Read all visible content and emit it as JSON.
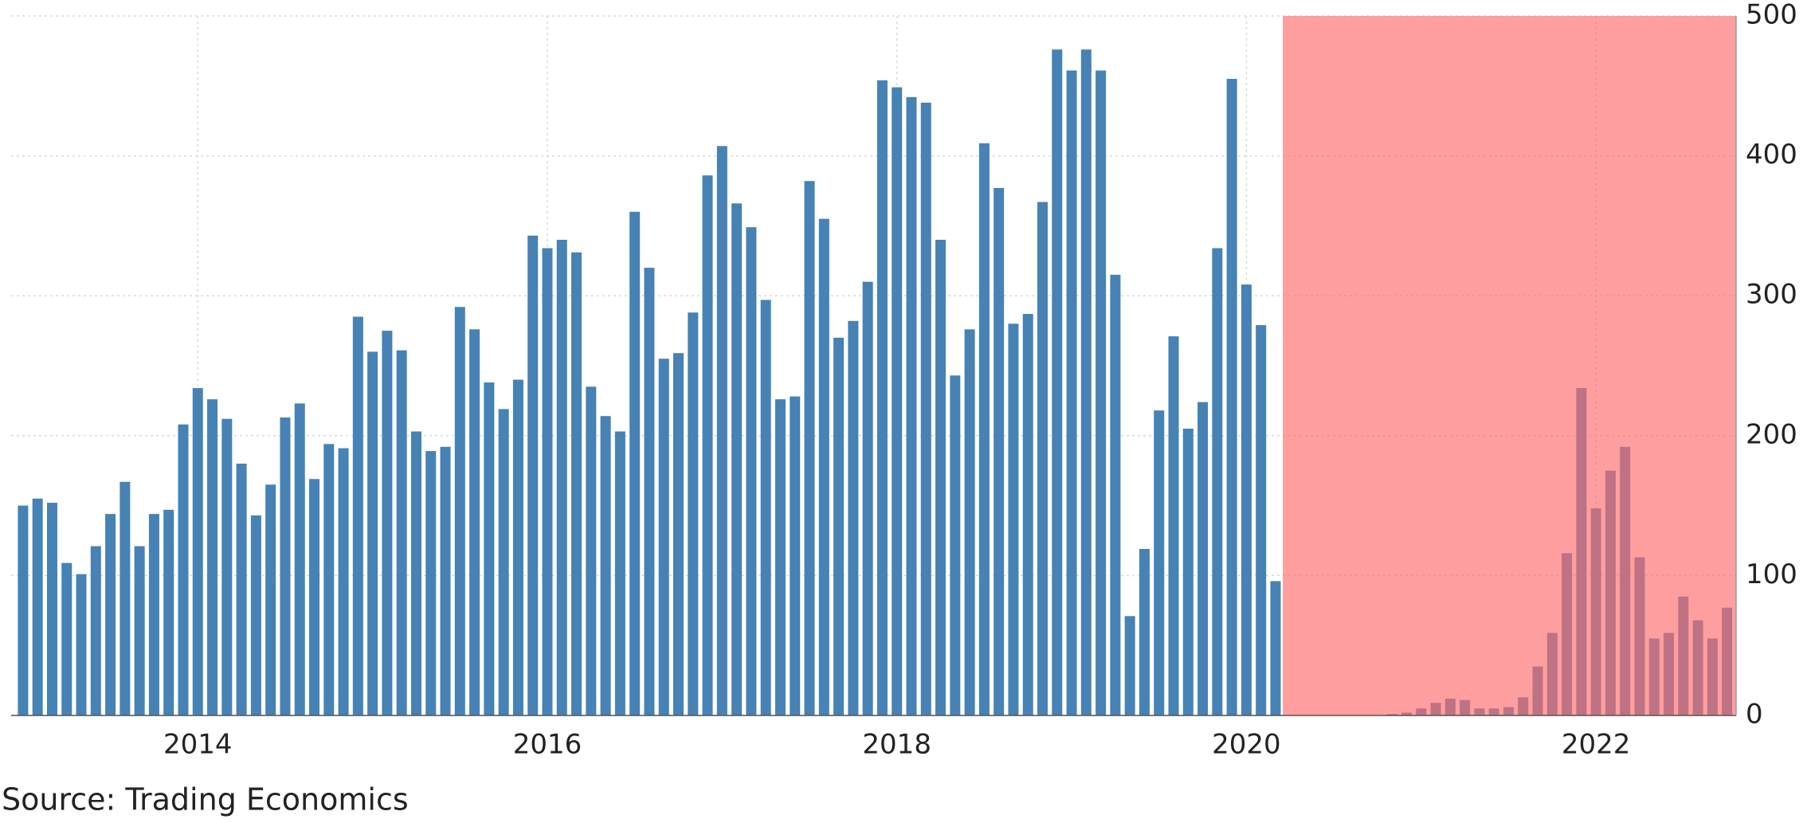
{
  "chart_data": {
    "type": "bar",
    "source": "Source: Trading Economics",
    "categories": [
      null,
      null,
      null,
      null,
      null,
      null,
      null,
      null,
      null,
      null,
      null,
      null,
      "2014",
      null,
      null,
      null,
      null,
      null,
      null,
      null,
      null,
      null,
      null,
      null,
      null,
      null,
      null,
      null,
      null,
      null,
      null,
      null,
      null,
      null,
      null,
      null,
      "2016",
      null,
      null,
      null,
      null,
      null,
      null,
      null,
      null,
      null,
      null,
      null,
      null,
      null,
      null,
      null,
      null,
      null,
      null,
      null,
      null,
      null,
      null,
      null,
      "2018",
      null,
      null,
      null,
      null,
      null,
      null,
      null,
      null,
      null,
      null,
      null,
      null,
      null,
      null,
      null,
      null,
      null,
      null,
      null,
      null,
      null,
      null,
      null,
      "2020",
      null,
      null,
      null,
      null,
      null,
      null,
      null,
      null,
      null,
      null,
      null,
      null,
      null,
      null,
      null,
      null,
      null,
      null,
      null,
      null,
      null,
      null,
      null,
      "2022",
      null,
      null,
      null,
      null,
      null,
      null,
      null,
      null,
      null
    ],
    "values": [
      150,
      155,
      152,
      109,
      101,
      121,
      144,
      167,
      121,
      144,
      147,
      208,
      234,
      226,
      212,
      180,
      143,
      165,
      213,
      223,
      169,
      194,
      191,
      285,
      260,
      275,
      261,
      203,
      189,
      192,
      292,
      276,
      238,
      219,
      240,
      343,
      334,
      340,
      331,
      235,
      214,
      203,
      360,
      320,
      255,
      259,
      288,
      386,
      407,
      366,
      349,
      297,
      226,
      228,
      382,
      355,
      270,
      282,
      310,
      454,
      449,
      442,
      438,
      340,
      243,
      276,
      409,
      377,
      280,
      287,
      367,
      476,
      461,
      476,
      461,
      315,
      71,
      119,
      218,
      271,
      205,
      224,
      334,
      455,
      308,
      279,
      96,
      0,
      0,
      0,
      0,
      0,
      0,
      0,
      1,
      2,
      5,
      9,
      12,
      11,
      5,
      5,
      6,
      13,
      35,
      59,
      116,
      234,
      148,
      175,
      192,
      113,
      55,
      59,
      85,
      68,
      55,
      77
    ],
    "color": "#4682b4",
    "highlight": {
      "start_index": 87,
      "color": "#ff6a6a"
    },
    "ylim": [
      0,
      500
    ],
    "yticks": [
      0,
      100,
      200,
      300,
      400,
      500
    ],
    "grid": true,
    "y_axis_side": "right"
  }
}
